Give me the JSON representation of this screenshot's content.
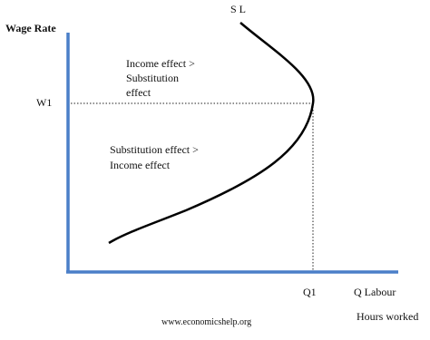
{
  "axes": {
    "y_label": "Wage Rate",
    "x_label": "Q Labour",
    "x_sublabel": "Hours worked"
  },
  "curve_label": "S L",
  "levels": {
    "wage": "W1",
    "quantity": "Q1"
  },
  "annotations": [
    {
      "lines": [
        "Income effect >",
        "Substitution",
        "effect"
      ]
    },
    {
      "lines": [
        "Substitution effect >",
        "Income effect"
      ]
    }
  ],
  "footer": "www.economicshelp.org"
}
